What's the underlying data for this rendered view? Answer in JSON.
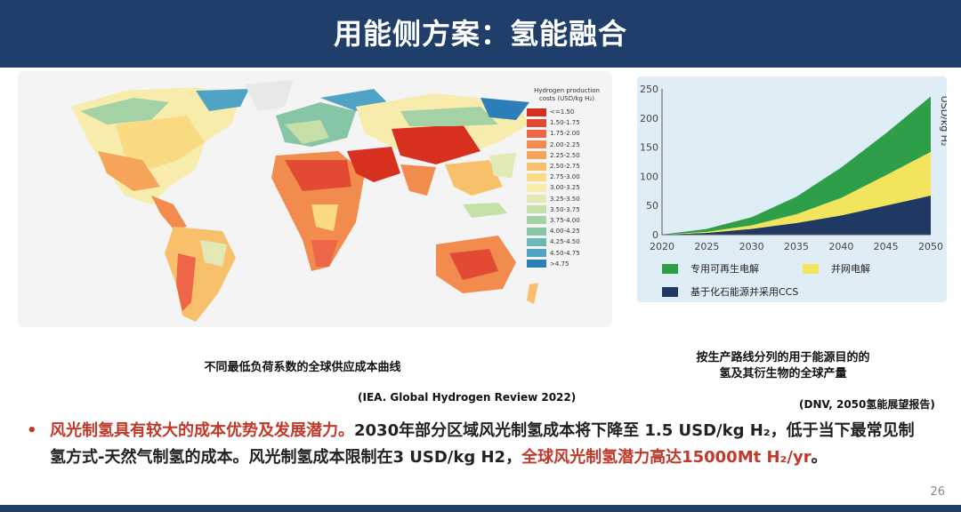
{
  "header": {
    "title": "用能侧方案：氢能融合"
  },
  "map": {
    "legend_title_line1": "Hydrogen production",
    "legend_title_line2": "costs (USD/kg H₂)",
    "legend": [
      {
        "label": "<=1.50",
        "color": "#d7301f"
      },
      {
        "label": "1.50-1.75",
        "color": "#e34a33"
      },
      {
        "label": "1.75-2.00",
        "color": "#ef6548"
      },
      {
        "label": "2.00-2.25",
        "color": "#f28b4e"
      },
      {
        "label": "2.25-2.50",
        "color": "#f5a45a"
      },
      {
        "label": "2.50-2.75",
        "color": "#f8c06b"
      },
      {
        "label": "2.75-3.00",
        "color": "#fadb84"
      },
      {
        "label": "3.00-3.25",
        "color": "#f7ecab"
      },
      {
        "label": "3.25-3.50",
        "color": "#e2e9b4"
      },
      {
        "label": "3.50-3.75",
        "color": "#c6dfa6"
      },
      {
        "label": "3.75-4.00",
        "color": "#a5d2a4"
      },
      {
        "label": "4.00-4.25",
        "color": "#86c6a6"
      },
      {
        "label": "4.25-4.50",
        "color": "#6bb7b6"
      },
      {
        "label": "4.50-4.75",
        "color": "#4fa3c4"
      },
      {
        "label": ">4.75",
        "color": "#2c7fb8"
      }
    ],
    "caption": "不同最低负荷系数的全球供应成本曲线",
    "source": "(IEA. Global Hydrogen Review 2022)"
  },
  "chart_data": {
    "type": "area",
    "ylabel": "USD/kg H₂",
    "x": [
      2020,
      2025,
      2030,
      2035,
      2040,
      2045,
      2050
    ],
    "ylim": [
      0,
      250
    ],
    "yticks": [
      0,
      50,
      100,
      150,
      200,
      250
    ],
    "stacked": true,
    "series": [
      {
        "name": "基于化石能源并采用CCS",
        "color": "#1f3864",
        "values": [
          0,
          3,
          10,
          20,
          33,
          50,
          67
        ]
      },
      {
        "name": "并网电解",
        "color": "#f2e45c",
        "values": [
          0,
          2,
          6,
          15,
          30,
          52,
          75
        ]
      },
      {
        "name": "专用可再生电解",
        "color": "#2e9e48",
        "values": [
          0,
          5,
          14,
          30,
          52,
          72,
          95
        ]
      }
    ],
    "legend_placement": "bottom",
    "grid": false
  },
  "chart_caption": {
    "line1": "按生产路线分列的用于能源目的的",
    "line2": "氢及其衍生物的全球产量"
  },
  "chart_source": "(DNV, 2050氢能展望报告)",
  "bullet": {
    "dot": "•",
    "red1": "风光制氢具有较大的成本优势及发展潜力。",
    "text1": "2030年部分区域风光制氢成本将下降至 1.5 USD/kg H₂，低于当下最常见制氢方式-天然气制氢的成本。风光制氢成本限制在3 USD/kg H2，",
    "red2": "全球风光制氢潜力高达15000Mt H₂/yr",
    "end": "。"
  },
  "page_number": "26"
}
